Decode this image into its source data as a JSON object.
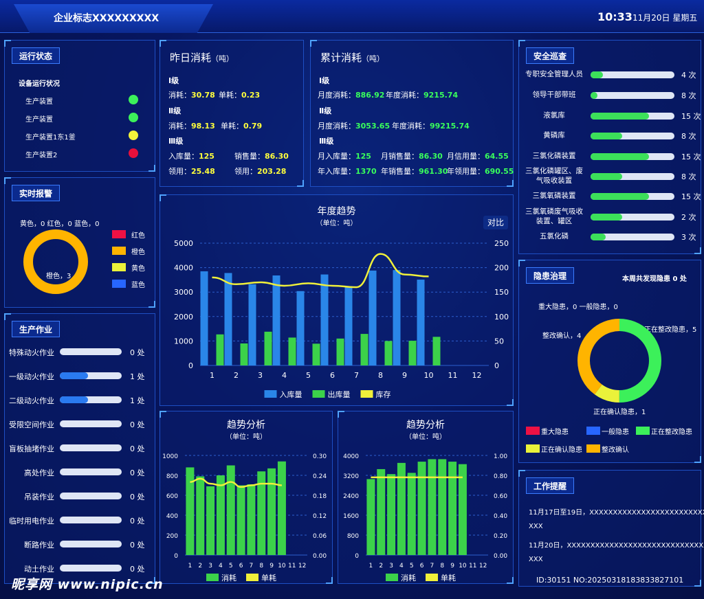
{
  "header": {
    "title": "企业标志XXXXXXXXX",
    "time": "10:33",
    "date": "11月20日 星期五"
  },
  "run_status": {
    "title": "运行状态",
    "subtitle": "设备运行状况",
    "items": [
      {
        "label": "生产装置",
        "color": "#3cf05a"
      },
      {
        "label": "生产装置",
        "color": "#3cf05a"
      },
      {
        "label": "生产装置1东1釜",
        "color": "#f2f23a"
      },
      {
        "label": "生产装置2",
        "color": "#e8103c"
      }
    ]
  },
  "alarm": {
    "title": "实时报警",
    "label_top": "黄色，0    红色，0    蓝色，0",
    "label_bottom": "橙色，3",
    "legend": [
      {
        "label": "红色",
        "color": "#ee1144"
      },
      {
        "label": "橙色",
        "color": "#ffb400"
      },
      {
        "label": "黄色",
        "color": "#eaf23a"
      },
      {
        "label": "蓝色",
        "color": "#2766ff"
      }
    ]
  },
  "production": {
    "title": "生产作业",
    "items": [
      {
        "label": "特殊动火作业",
        "value": "0 处",
        "fill": 0
      },
      {
        "label": "一级动火作业",
        "value": "1 处",
        "fill": 0.45
      },
      {
        "label": "二级动火作业",
        "value": "1 处",
        "fill": 0.45
      },
      {
        "label": "受限空间作业",
        "value": "0 处",
        "fill": 0
      },
      {
        "label": "盲板抽堵作业",
        "value": "0 处",
        "fill": 0
      },
      {
        "label": "高处作业",
        "value": "0 处",
        "fill": 0
      },
      {
        "label": "吊装作业",
        "value": "0 处",
        "fill": 0
      },
      {
        "label": "临时用电作业",
        "value": "0 处",
        "fill": 0
      },
      {
        "label": "断路作业",
        "value": "0 处",
        "fill": 0
      },
      {
        "label": "动土作业",
        "value": "0 处",
        "fill": 0
      }
    ]
  },
  "yesterday": {
    "title": "昨日消耗",
    "unit": "（吨）",
    "g1": "Ⅰ级",
    "g1_l1": "消耗：",
    "g1_v1": "30.78",
    "g1_l2": "单耗：",
    "g1_v2": "0.23",
    "g2": "Ⅱ级",
    "g2_l1": "消耗：",
    "g2_v1": "98.13",
    "g2_l2": "单耗：",
    "g2_v2": "0.79",
    "g3": "Ⅲ级",
    "g3_l1": "入库量：",
    "g3_v1": "125",
    "g3_l2": "销售量：",
    "g3_v2": "86.30",
    "g3_l3": "领用：",
    "g3_v3": "25.48",
    "g3_l4": "领用：",
    "g3_v4": "203.28"
  },
  "cumulative": {
    "title": "累计消耗",
    "unit": "（吨）",
    "g1": "Ⅰ级",
    "g1_l1": "月度消耗：",
    "g1_v1": "886.92",
    "g1_l2": "年度消耗：",
    "g1_v2": "9215.74",
    "g2": "Ⅱ级",
    "g2_l1": "月度消耗：",
    "g2_v1": "3053.65",
    "g2_l2": "年度消耗：",
    "g2_v2": "99215.74",
    "g3": "Ⅲ级",
    "g3_l1": "月入库量：",
    "g3_v1": "125",
    "g3_l2": "月销售量：",
    "g3_v2": "86.30",
    "g3_l3": "月信用量：",
    "g3_v3": "64.55",
    "g3_l4": "年入库量：",
    "g3_v4": "1370",
    "g3_l5": "年销售量：",
    "g3_v5": "961.30",
    "g3_l6": "年领用量：",
    "g3_v6": "690.55"
  },
  "safety": {
    "title": "安全巡查",
    "items": [
      {
        "label": "专职安全管理人员",
        "value": "4 次",
        "fill": 0.15
      },
      {
        "label": "领导干部带班",
        "value": "8 次",
        "fill": 0.08
      },
      {
        "label": "液氯库",
        "value": "15 次",
        "fill": 0.7
      },
      {
        "label": "黄磷库",
        "value": "8 次",
        "fill": 0.38
      },
      {
        "label": "三氯化磷装置",
        "value": "15 次",
        "fill": 0.7
      },
      {
        "label": "三氯化磷罐区、废气吸收装置",
        "value": "8 次",
        "fill": 0.38
      },
      {
        "label": "三氯氧磷装置",
        "value": "15 次",
        "fill": 0.7
      },
      {
        "label": "三氯氧磷废气吸收装置、罐区",
        "value": "2 次",
        "fill": 0.38
      },
      {
        "label": "五氯化磷",
        "value": "3 次",
        "fill": 0.18
      }
    ]
  },
  "hazard": {
    "title": "隐患治理",
    "weekly": "本周共发现隐患  0  处",
    "lbl_major": "重大隐患，0   一般隐患，0",
    "lbl_confirm": "整改确认，4",
    "lbl_fixing": "正在整改隐患，5",
    "lbl_checking": "正在确认隐患，1",
    "legend": [
      {
        "label": "重大隐患",
        "color": "#ee1144"
      },
      {
        "label": "一般隐患",
        "color": "#2766ff"
      },
      {
        "label": "正在整改隐患",
        "color": "#3cf05a"
      },
      {
        "label": "正在确认隐患",
        "color": "#eaf23a"
      },
      {
        "label": "整改确认",
        "color": "#ffb400"
      }
    ]
  },
  "reminder": {
    "title": "工作提醒",
    "line1": "11月17日至19日，XXXXXXXXXXXXXXXXXXXXXXXXXXX",
    "line1b": "XXX",
    "line2": "11月20日，XXXXXXXXXXXXXXXXXXXXXXXXXXXXXXX",
    "line2b": "XXX"
  },
  "watermark": {
    "logo": "昵享网 www.nipic.cn",
    "id": "ID:30151 NO:20250318183833827101"
  },
  "chart_data": [
    {
      "type": "bar",
      "title": "年度趋势",
      "subtitle": "（单位：吨）",
      "button": "对比",
      "categories": [
        "1",
        "2",
        "3",
        "4",
        "5",
        "6",
        "7",
        "8",
        "9",
        "10",
        "11",
        "12"
      ],
      "ylim": [
        0,
        5000
      ],
      "y2lim": [
        0,
        250
      ],
      "yticks": [
        "5000",
        "4000",
        "3000",
        "2000",
        "1000",
        "0"
      ],
      "y2ticks": [
        "250",
        "200",
        "150",
        "100",
        "50",
        "0"
      ],
      "series": [
        {
          "name": "入库量",
          "color": "#2a86e8",
          "values": [
            3850,
            3780,
            3320,
            3680,
            3040,
            3720,
            3240,
            3880,
            3900,
            3510,
            null,
            null
          ]
        },
        {
          "name": "出库量",
          "color": "#3cd24a",
          "values": [
            1270,
            900,
            1380,
            1140,
            890,
            1100,
            1290,
            1000,
            1010,
            1170,
            null,
            null
          ]
        },
        {
          "name": "库存",
          "color": "#f0f03a",
          "axis": "right",
          "values": [
            180,
            166,
            170,
            163,
            168,
            163,
            160,
            228,
            186,
            182,
            null,
            null
          ]
        }
      ]
    },
    {
      "type": "bar",
      "title": "趋势分析",
      "subtitle": "（单位：吨）",
      "categories": [
        "1",
        "2",
        "3",
        "4",
        "5",
        "6",
        "7",
        "8",
        "9",
        "10",
        "11",
        "12"
      ],
      "ylim": [
        0,
        1000
      ],
      "y2lim": [
        0,
        0.3
      ],
      "yticks": [
        "1000",
        "800",
        "600",
        "400",
        "200",
        "0"
      ],
      "y2ticks": [
        "0.30",
        "0.24",
        "0.18",
        "0.12",
        "0.06",
        "0.00"
      ],
      "series": [
        {
          "name": "消耗",
          "color": "#3cd24a",
          "values": [
            880,
            790,
            690,
            800,
            900,
            700,
            710,
            840,
            870,
            940,
            null,
            null
          ]
        },
        {
          "name": "单耗",
          "color": "#f0f03a",
          "axis": "right",
          "values": [
            0.22,
            0.23,
            0.215,
            0.21,
            0.22,
            0.205,
            0.21,
            0.215,
            0.215,
            0.21,
            null,
            null
          ]
        }
      ]
    },
    {
      "type": "bar",
      "title": "趋势分析",
      "subtitle": "（单位：吨）",
      "categories": [
        "1",
        "2",
        "3",
        "4",
        "5",
        "6",
        "7",
        "8",
        "9",
        "10",
        "11",
        "12"
      ],
      "ylim": [
        0,
        4000
      ],
      "y2lim": [
        0,
        1.0
      ],
      "yticks": [
        "4000",
        "3200",
        "2400",
        "1600",
        "800",
        "0"
      ],
      "y2ticks": [
        "1.00",
        "0.80",
        "0.60",
        "0.40",
        "0.20",
        "0.00"
      ],
      "series": [
        {
          "name": "消耗",
          "color": "#3cd24a",
          "values": [
            3050,
            3450,
            3250,
            3700,
            3300,
            3750,
            3850,
            3850,
            3750,
            3650,
            null,
            null
          ]
        },
        {
          "name": "单耗",
          "color": "#f0f03a",
          "axis": "right",
          "values": [
            0.78,
            0.78,
            0.78,
            0.78,
            0.78,
            0.78,
            0.78,
            0.78,
            0.78,
            0.78,
            null,
            null
          ]
        }
      ]
    }
  ]
}
